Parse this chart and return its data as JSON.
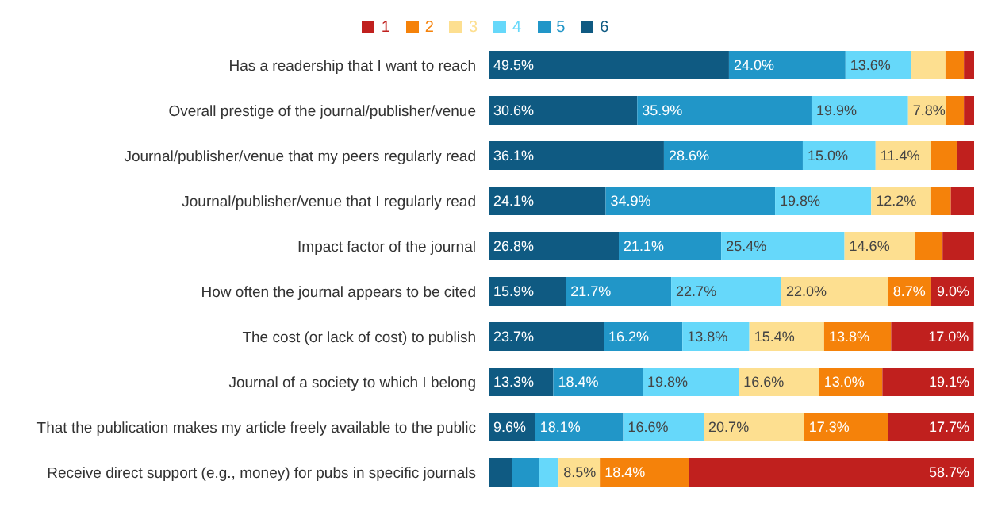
{
  "chart_data": {
    "type": "bar",
    "orientation": "horizontal",
    "stacked": true,
    "legend": "top",
    "tick_labels": "y",
    "categories": [
      "Has a readership that I want to reach",
      "Overall prestige of the journal/publisher/venue",
      "Journal/publisher/venue that my peers regularly read",
      "Journal/publisher/venue that I regularly read",
      "Impact factor of the journal",
      "How often the journal appears to be cited",
      "The cost (or lack of cost) to publish",
      "Journal of a society to which I belong",
      "That the publication makes my article freely available to the public",
      "Receive direct support (e.g., money) for pubs in specific journals"
    ],
    "xlim": [
      0,
      100
    ],
    "series": [
      {
        "name": "6",
        "color": "#0f5a82",
        "values": [
          49.5,
          30.6,
          36.1,
          24.1,
          26.8,
          15.9,
          23.7,
          13.3,
          9.6,
          4.9
        ],
        "value_labels": [
          "49.5%",
          "30.6%",
          "36.1%",
          "24.1%",
          "26.8%",
          "15.9%",
          "23.7%",
          "13.3%",
          "9.6%",
          null
        ]
      },
      {
        "name": "5",
        "color": "#2196c8",
        "values": [
          24.0,
          35.9,
          28.6,
          34.9,
          21.1,
          21.7,
          16.2,
          18.4,
          18.1,
          5.5
        ],
        "value_labels": [
          "24.0%",
          "35.9%",
          "28.6%",
          "34.9%",
          "21.1%",
          "21.7%",
          "16.2%",
          "18.4%",
          "18.1%",
          null
        ]
      },
      {
        "name": "4",
        "color": "#66d8fa",
        "values": [
          13.6,
          19.9,
          15.0,
          19.8,
          25.4,
          22.7,
          13.8,
          19.8,
          16.6,
          4.0
        ],
        "value_labels": [
          "13.6%",
          "19.9%",
          "15.0%",
          "19.8%",
          "25.4%",
          "22.7%",
          "13.8%",
          "19.8%",
          "16.6%",
          null
        ]
      },
      {
        "name": "3",
        "color": "#fddf90",
        "values": [
          7.0,
          7.8,
          11.4,
          12.2,
          14.6,
          22.0,
          15.4,
          16.6,
          20.7,
          8.5
        ],
        "value_labels": [
          null,
          "7.8%",
          "11.4%",
          "12.2%",
          "14.6%",
          "22.0%",
          "15.4%",
          "16.6%",
          "20.7%",
          "8.5%"
        ]
      },
      {
        "name": "2",
        "color": "#f5820a",
        "values": [
          3.8,
          3.7,
          5.3,
          4.2,
          5.6,
          8.7,
          13.8,
          13.0,
          17.3,
          18.4
        ],
        "value_labels": [
          null,
          null,
          null,
          null,
          null,
          "8.7%",
          "13.8%",
          "13.0%",
          "17.3%",
          "18.4%"
        ]
      },
      {
        "name": "1",
        "color": "#c0201e",
        "values": [
          2.1,
          2.1,
          3.6,
          4.8,
          6.5,
          9.0,
          17.0,
          19.1,
          17.7,
          58.7
        ],
        "value_labels": [
          null,
          null,
          null,
          null,
          null,
          "9.0%",
          "17.0%",
          "19.1%",
          "17.7%",
          "58.7%"
        ]
      }
    ]
  }
}
